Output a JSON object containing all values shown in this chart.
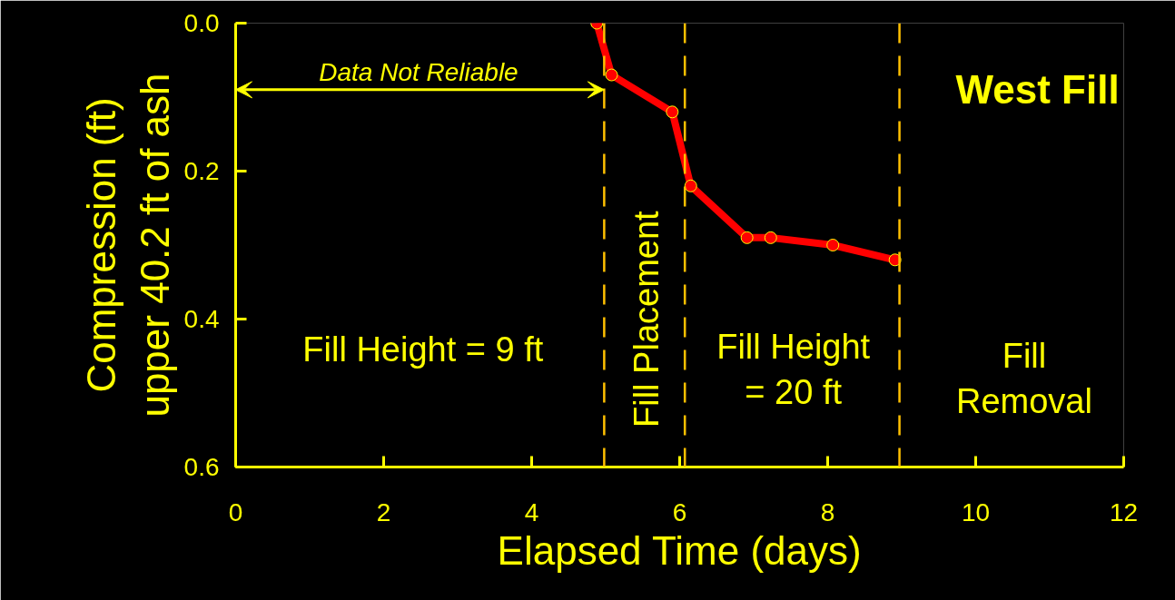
{
  "chart_data": {
    "type": "line",
    "xlabel": "Elapsed Time (days)",
    "ylabel": "Compression (ft)\nupper 40.2 ft of ash",
    "x": [
      4.88,
      5.08,
      5.9,
      6.15,
      6.91,
      7.23,
      8.07,
      8.91
    ],
    "series": [
      {
        "color": "#ff0000",
        "values": [
          0.0,
          0.07,
          0.12,
          0.22,
          0.29,
          0.29,
          0.3,
          0.32
        ]
      }
    ],
    "marker": "circle",
    "xlim": [
      0,
      12
    ],
    "xticks": [
      0,
      2,
      4,
      6,
      8,
      10,
      12
    ],
    "ylim": [
      0.6,
      0.0
    ],
    "yticks": [
      {
        "value": 0.0,
        "label": "0.0"
      },
      {
        "value": 0.2,
        "label": "0.2"
      },
      {
        "value": 0.4,
        "label": "0.4"
      },
      {
        "value": 0.6,
        "label": "0.6"
      }
    ],
    "grid": false,
    "ref_lines": [
      {
        "axis": "x",
        "value": 4.98,
        "label": null,
        "color": "#ffc000",
        "line_style": "dashed"
      },
      {
        "axis": "x",
        "value": 6.07,
        "label": null,
        "color": "#ffc000",
        "line_style": "dashed"
      },
      {
        "axis": "x",
        "value": 8.97,
        "label": null,
        "color": "#ffc000",
        "line_style": "dashed"
      }
    ],
    "annotations": [
      "Data Not Reliable",
      "Fill Height = 9 ft",
      "Fill Placement",
      "Fill Height\n= 20 ft",
      "Fill\nRemoval",
      "West Fill"
    ]
  }
}
